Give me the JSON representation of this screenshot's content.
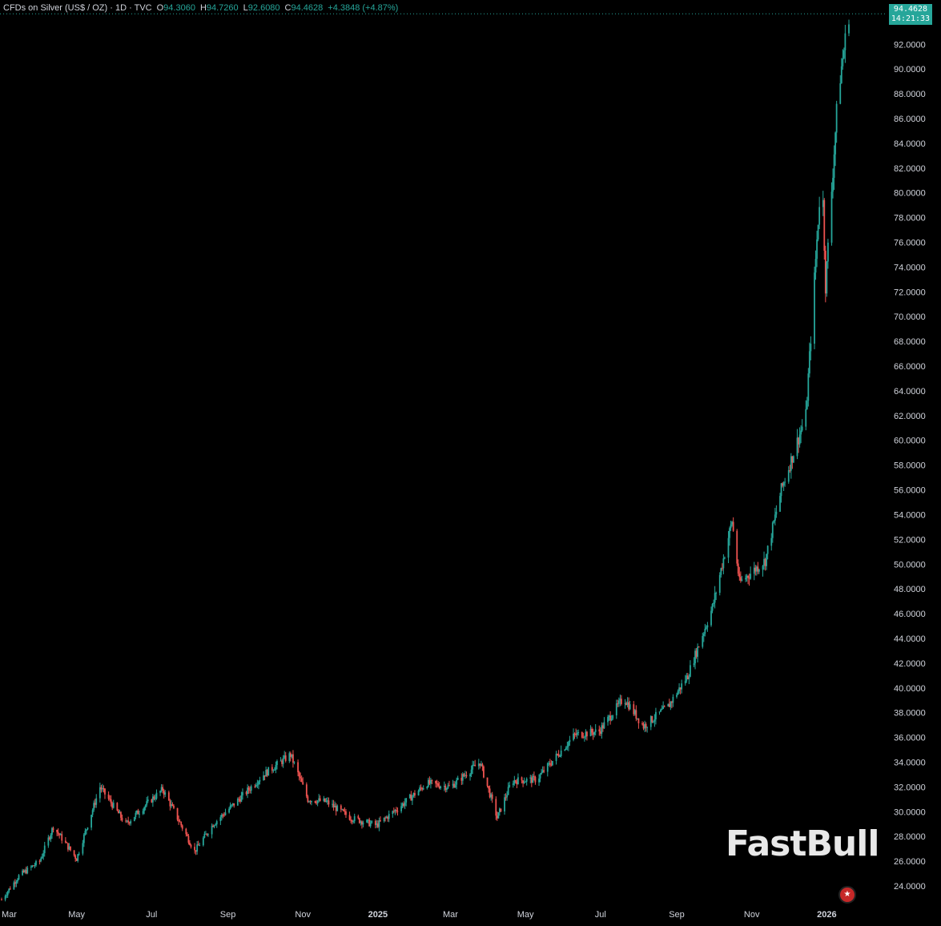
{
  "legend": {
    "symbol": "CFDs on Silver (US$ / OZ) · 1D · TVC",
    "open_label": "O",
    "open": "94.3060",
    "high_label": "H",
    "high": "94.7260",
    "low_label": "L",
    "low": "92.6080",
    "close_label": "C",
    "close": "94.4628",
    "change": "+4.3848 (+4.87%)"
  },
  "last_price": {
    "price": "94.4628",
    "countdown": "14:21:33"
  },
  "watermark": "FastBull",
  "colors": {
    "up": "#26a69a",
    "down": "#ef5350",
    "background": "#000000",
    "axis_text": "#d1d4dc"
  },
  "chart_data": {
    "type": "line",
    "title": "CFDs on Silver (US$ / OZ) · 1D · TVC",
    "xlabel": "",
    "ylabel": "",
    "x_ticks": [
      "Mar",
      "May",
      "Jul",
      "Sep",
      "Nov",
      "2025",
      "Mar",
      "May",
      "Jul",
      "Sep",
      "Nov",
      "2026"
    ],
    "y_ticks": [
      "24.0000",
      "26.0000",
      "28.0000",
      "30.0000",
      "32.0000",
      "34.0000",
      "36.0000",
      "38.0000",
      "40.0000",
      "42.0000",
      "44.0000",
      "46.0000",
      "48.0000",
      "50.0000",
      "52.0000",
      "54.0000",
      "56.0000",
      "58.0000",
      "60.0000",
      "62.0000",
      "64.0000",
      "66.0000",
      "68.0000",
      "70.0000",
      "72.0000",
      "74.0000",
      "76.0000",
      "78.0000",
      "80.0000",
      "82.0000",
      "84.0000",
      "86.0000",
      "88.0000",
      "90.0000",
      "92.0000"
    ],
    "ylim": [
      22.9,
      94.8
    ],
    "grid": false,
    "series": [
      {
        "x": [
          "2024-03-01",
          "2024-03-15",
          "2024-04-01",
          "2024-04-12",
          "2024-05-01",
          "2024-05-20",
          "2024-06-10",
          "2024-07-01",
          "2024-07-10",
          "2024-08-05",
          "2024-08-20",
          "2024-09-10",
          "2024-09-30",
          "2024-10-22",
          "2024-11-05",
          "2024-11-20",
          "2024-12-10",
          "2024-12-31",
          "2025-01-20",
          "2025-02-10",
          "2025-03-01",
          "2025-03-25",
          "2025-04-08",
          "2025-04-20",
          "2025-05-10",
          "2025-06-10",
          "2025-06-30",
          "2025-07-20",
          "2025-08-05",
          "2025-08-25",
          "2025-09-10",
          "2025-09-30",
          "2025-10-16",
          "2025-10-22",
          "2025-11-12",
          "2025-11-25",
          "2025-12-05",
          "2025-12-15",
          "2025-12-28",
          "2025-12-31",
          "2026-01-10",
          "2026-01-19"
        ],
        "values": [
          22.9,
          24.8,
          26.0,
          28.8,
          26.2,
          32.0,
          29.0,
          31.0,
          31.8,
          26.8,
          29.0,
          31.0,
          33.0,
          34.6,
          31.0,
          30.8,
          29.5,
          28.9,
          30.5,
          32.3,
          32.0,
          34.0,
          29.5,
          32.5,
          32.6,
          36.2,
          36.5,
          39.2,
          36.9,
          38.5,
          41.0,
          46.5,
          53.5,
          48.5,
          50.3,
          56.0,
          59.0,
          62.0,
          82.5,
          72.5,
          88.0,
          94.46
        ]
      }
    ]
  }
}
